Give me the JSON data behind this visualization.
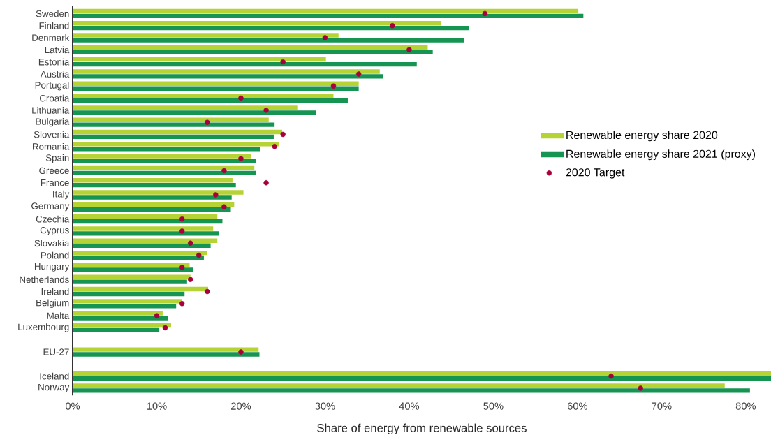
{
  "chart_data": {
    "type": "bar",
    "orientation": "horizontal",
    "xlabel": "Share of energy from renewable sources",
    "categories": [
      "Sweden",
      "Finland",
      "Denmark",
      "Latvia",
      "Estonia",
      "Austria",
      "Portugal",
      "Croatia",
      "Lithuania",
      "Bulgaria",
      "Slovenia",
      "Romania",
      "Spain",
      "Greece",
      "France",
      "Italy",
      "Germany",
      "Czechia",
      "Cyprus",
      "Slovakia",
      "Poland",
      "Hungary",
      "Netherlands",
      "Ireland",
      "Belgium",
      "Malta",
      "Luxembourg",
      null,
      "EU-27",
      null,
      "Iceland",
      "Norway"
    ],
    "series": [
      {
        "name": "Renewable energy share 2020",
        "color": "#b5d334",
        "values": [
          60.1,
          43.8,
          31.6,
          42.2,
          30.1,
          36.5,
          34.0,
          31.0,
          26.7,
          23.3,
          24.9,
          24.5,
          21.2,
          21.6,
          19.0,
          20.3,
          19.2,
          17.2,
          16.7,
          17.2,
          16.0,
          13.9,
          14.0,
          16.1,
          13.0,
          10.7,
          11.7,
          null,
          22.1,
          null,
          83,
          77.5
        ]
      },
      {
        "name": "Renewable energy share 2021 (proxy)",
        "color": "#169452",
        "values": [
          60.7,
          47.1,
          46.5,
          42.8,
          40.9,
          36.9,
          34.0,
          32.7,
          28.9,
          24.0,
          23.9,
          22.3,
          21.8,
          21.8,
          19.4,
          18.9,
          18.8,
          17.8,
          17.4,
          16.4,
          15.6,
          14.3,
          13.6,
          13.3,
          12.3,
          11.3,
          10.3,
          null,
          22.2,
          null,
          83,
          80.5
        ]
      },
      {
        "name": "2020 Target",
        "type": "scatter",
        "marker": "circle",
        "color": "#a8003c",
        "values": [
          49,
          38,
          30,
          40,
          25,
          34,
          31,
          20,
          23,
          16,
          25,
          24,
          20,
          18,
          23,
          17,
          18,
          13,
          13,
          14,
          15,
          13,
          14,
          16,
          13,
          10,
          11,
          null,
          20,
          null,
          64,
          67.5
        ]
      }
    ],
    "xlim": [
      0,
      83
    ],
    "xticks": [
      {
        "value": 0,
        "label": "0%"
      },
      {
        "value": 10,
        "label": "10%"
      },
      {
        "value": 20,
        "label": "20%"
      },
      {
        "value": 30,
        "label": "30%"
      },
      {
        "value": 40,
        "label": "40%"
      },
      {
        "value": 50,
        "label": "50%"
      },
      {
        "value": 60,
        "label": "60%"
      },
      {
        "value": 70,
        "label": "70%"
      },
      {
        "value": 80,
        "label": "80%"
      }
    ],
    "legend": "right"
  }
}
